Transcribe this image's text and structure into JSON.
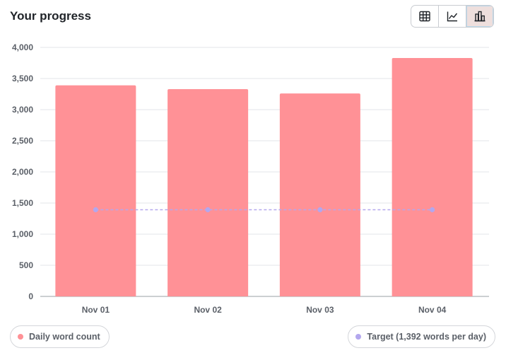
{
  "header": {
    "title": "Your progress"
  },
  "view_toggle": {
    "options": [
      {
        "name": "table",
        "icon": "table-icon",
        "active": false
      },
      {
        "name": "line",
        "icon": "line-chart-icon",
        "active": false
      },
      {
        "name": "bar",
        "icon": "bar-chart-icon",
        "active": true
      }
    ]
  },
  "chart_data": {
    "type": "bar",
    "categories": [
      "Nov 01",
      "Nov 02",
      "Nov 03",
      "Nov 04"
    ],
    "series": [
      {
        "name": "Daily word count",
        "type": "bar",
        "color": "#ff9196",
        "values": [
          3390,
          3330,
          3260,
          3830
        ]
      },
      {
        "name": "Target (1,392 words per day)",
        "type": "line",
        "style": "dashed",
        "color": "#b3a7ee",
        "values": [
          1392,
          1392,
          1392,
          1392
        ]
      }
    ],
    "ylim": [
      0,
      4000
    ],
    "yticks": [
      0,
      500,
      1000,
      1500,
      2000,
      2500,
      3000,
      3500,
      4000
    ],
    "ytick_labels": [
      "0",
      "500",
      "1,000",
      "1,500",
      "2,000",
      "2,500",
      "3,000",
      "3,500",
      "4,000"
    ],
    "grid": true,
    "legend": "bottom"
  },
  "legend": {
    "daily_label": "Daily word count",
    "target_label": "Target (1,392 words per day)",
    "daily_color": "#ff9196",
    "target_color": "#b3a7ee"
  }
}
